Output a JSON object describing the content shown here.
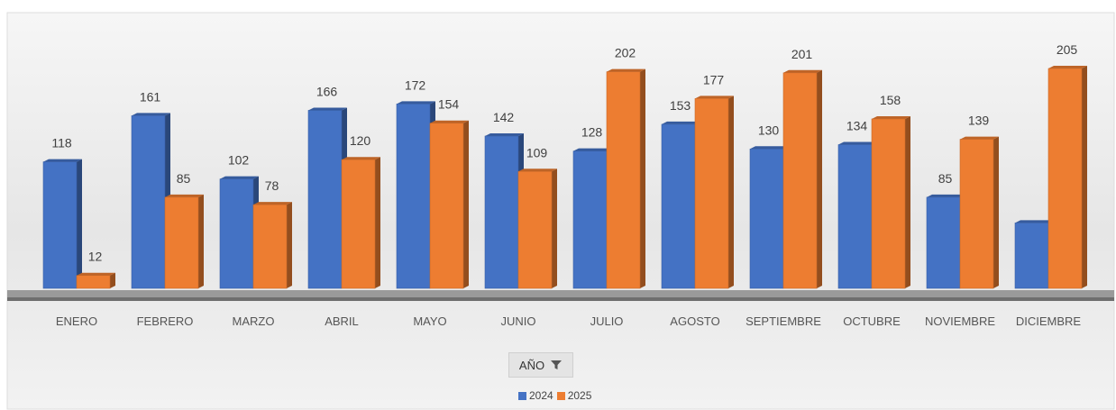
{
  "chart_data": {
    "type": "bar",
    "title": "",
    "xlabel": "",
    "ylabel": "",
    "categories": [
      "ENERO",
      "FEBRERO",
      "MARZO",
      "ABRIL",
      "MAYO",
      "JUNIO",
      "JULIO",
      "AGOSTO",
      "SEPTIEMBRE",
      "OCTUBRE",
      "NOVIEMBRE",
      "DICIEMBRE"
    ],
    "series": [
      {
        "name": "2024",
        "color": "#4472C4",
        "values": [
          118,
          161,
          102,
          166,
          172,
          142,
          128,
          153,
          130,
          134,
          85,
          61
        ]
      },
      {
        "name": "2025",
        "color": "#ED7D31",
        "values": [
          12,
          85,
          78,
          120,
          154,
          109,
          202,
          177,
          201,
          158,
          139,
          205
        ]
      }
    ],
    "value_labels": {
      "2024": [
        "118",
        "161",
        "102",
        "166",
        "172",
        "142",
        "128",
        "153",
        "130",
        "134",
        "85",
        ""
      ],
      "2025": [
        "12",
        "85",
        "78",
        "120",
        "154",
        "109",
        "202",
        "177",
        "201",
        "158",
        "139",
        "205"
      ]
    },
    "ylim": [
      0,
      215
    ],
    "grid": false,
    "legend": "bottom-center",
    "style": "3d-column"
  },
  "filter": {
    "label": "AÑO",
    "icon": "filter-icon"
  },
  "legend_items": [
    {
      "label": "2024",
      "color": "#4472C4"
    },
    {
      "label": "2025",
      "color": "#ED7D31"
    }
  ]
}
